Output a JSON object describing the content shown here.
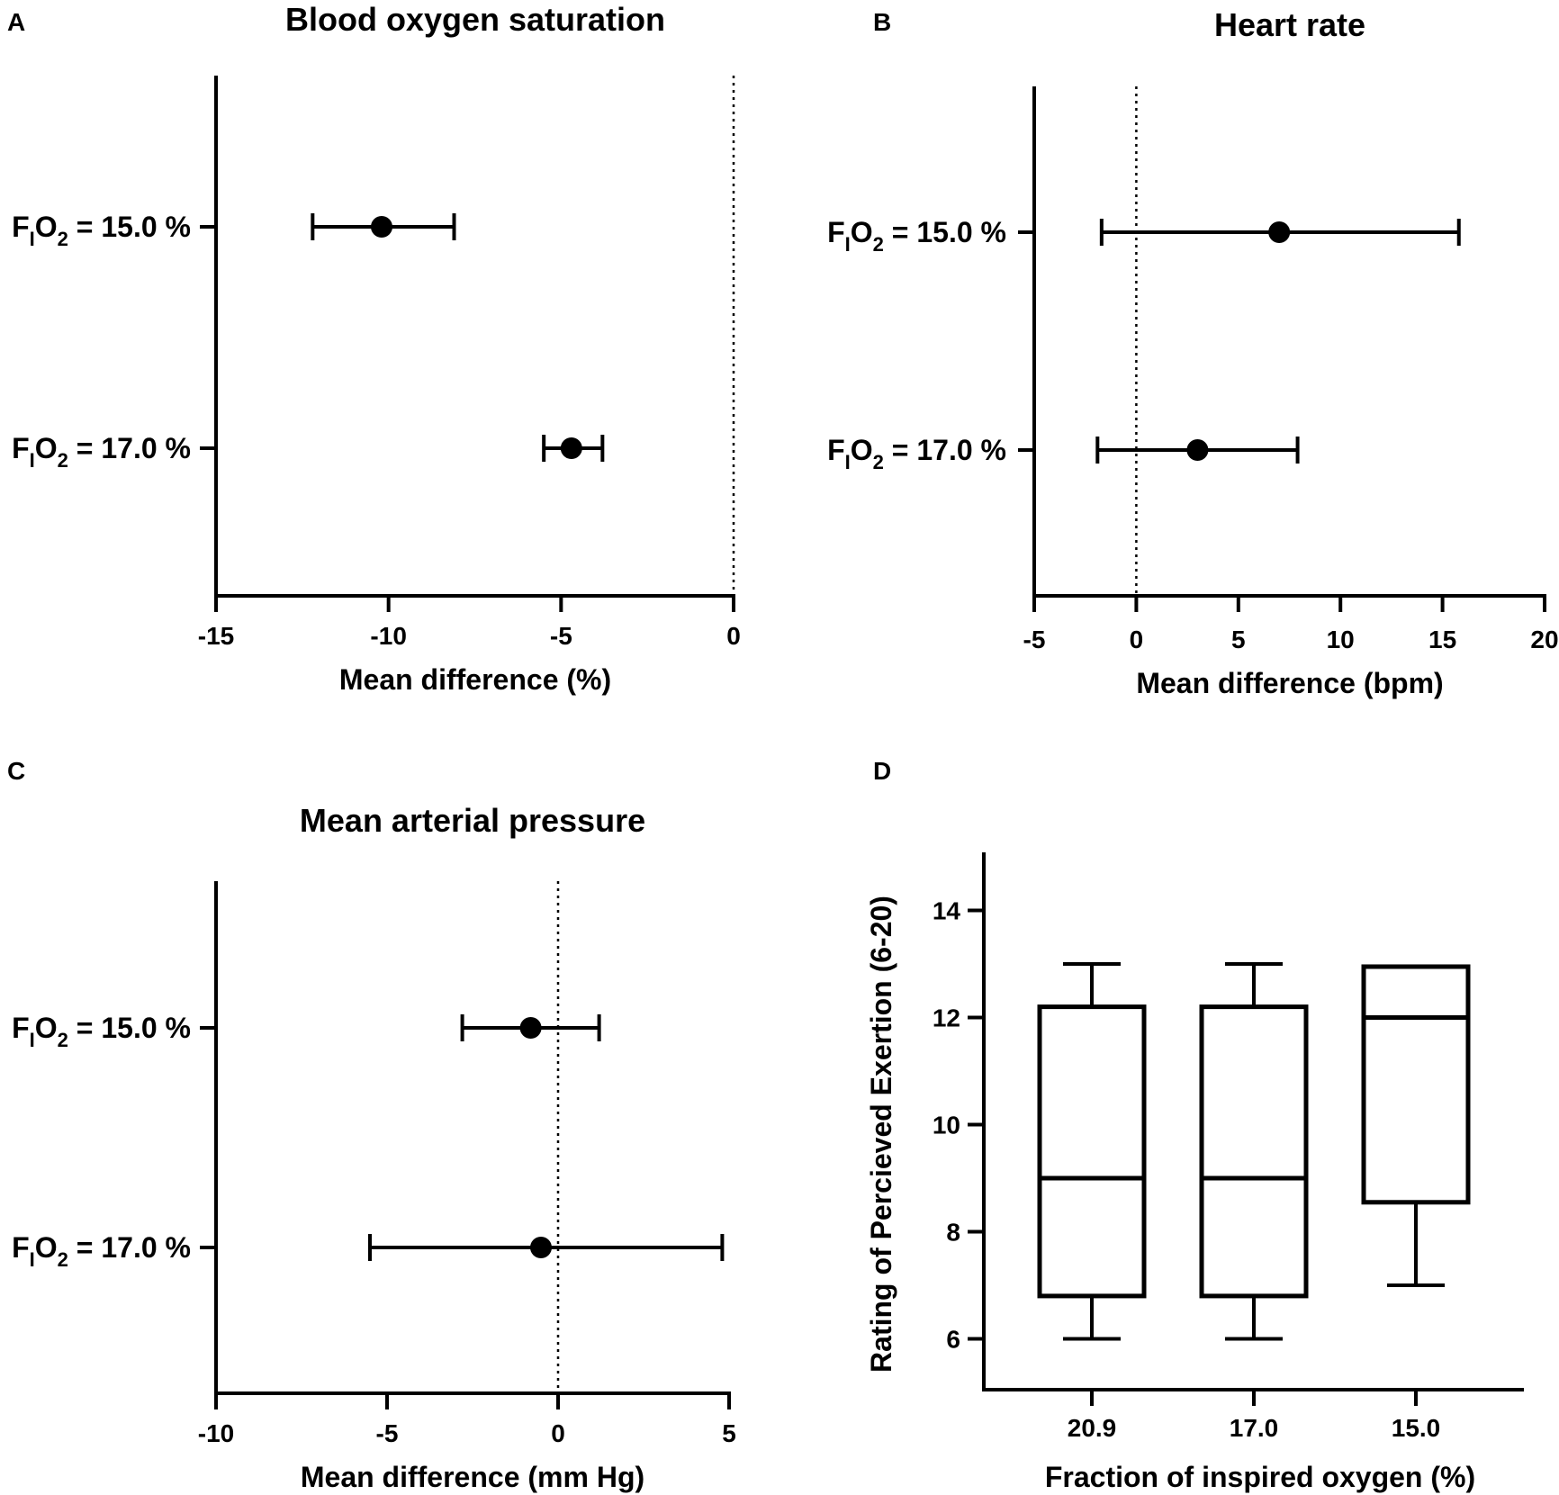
{
  "chart_data": [
    {
      "panel": "A",
      "type": "forest",
      "title": "Blood oxygen saturation",
      "xlabel": "Mean difference (%)",
      "xlim": [
        -15,
        0
      ],
      "xticks": [
        "-15",
        "-10",
        "-5",
        "0"
      ],
      "reference_line": 0,
      "rows": [
        {
          "label": {
            "p1": "F",
            "sub1": "I",
            "p2": "O",
            "sub2": "2",
            "p3": " = 15.0 %"
          },
          "mean": -10.2,
          "ci": [
            -12.2,
            -8.1
          ]
        },
        {
          "label": {
            "p1": "F",
            "sub1": "I",
            "p2": "O",
            "sub2": "2",
            "p3": " = 17.0 %"
          },
          "mean": -4.7,
          "ci": [
            -5.5,
            -3.8
          ]
        }
      ]
    },
    {
      "panel": "B",
      "type": "forest",
      "title": "Heart rate",
      "xlabel": "Mean difference (bpm)",
      "xlim": [
        -5,
        20
      ],
      "xticks": [
        "-5",
        "0",
        "5",
        "10",
        "15",
        "20"
      ],
      "reference_line": 0,
      "rows": [
        {
          "label": {
            "p1": "F",
            "sub1": "I",
            "p2": "O",
            "sub2": "2",
            "p3": " = 15.0 %"
          },
          "mean": 7.0,
          "ci": [
            -1.7,
            15.8
          ]
        },
        {
          "label": {
            "p1": "F",
            "sub1": "I",
            "p2": "O",
            "sub2": "2",
            "p3": " = 17.0 %"
          },
          "mean": 3.0,
          "ci": [
            -1.9,
            7.9
          ]
        }
      ]
    },
    {
      "panel": "C",
      "type": "forest",
      "title": "Mean arterial pressure",
      "xlabel": "Mean difference (mm Hg)",
      "xlim": [
        -10,
        5
      ],
      "xticks": [
        "-10",
        "-5",
        "0",
        "5"
      ],
      "reference_line": 0,
      "rows": [
        {
          "label": {
            "p1": "F",
            "sub1": "I",
            "p2": "O",
            "sub2": "2",
            "p3": " = 15.0 %"
          },
          "mean": -0.8,
          "ci": [
            -2.8,
            1.2
          ]
        },
        {
          "label": {
            "p1": "F",
            "sub1": "I",
            "p2": "O",
            "sub2": "2",
            "p3": " = 17.0 %"
          },
          "mean": -0.5,
          "ci": [
            -5.5,
            4.8
          ]
        }
      ]
    },
    {
      "panel": "D",
      "type": "box",
      "title": "",
      "xlabel": "Fraction of inspired oxygen (%)",
      "ylabel": "Rating of Percieved Exertion (6-20)",
      "ylim": [
        5,
        15
      ],
      "yticks": [
        "6",
        "8",
        "10",
        "12",
        "14"
      ],
      "categories": [
        "20.9",
        "17.0",
        "15.0"
      ],
      "boxes": [
        {
          "min": 6,
          "q1": 6.8,
          "median": 9,
          "q3": 12.2,
          "max": 13
        },
        {
          "min": 6,
          "q1": 6.8,
          "median": 9,
          "q3": 12.2,
          "max": 13
        },
        {
          "min": 7,
          "q1": 8.55,
          "median": 12,
          "q3": 12.95,
          "max": 12.95
        }
      ]
    }
  ]
}
